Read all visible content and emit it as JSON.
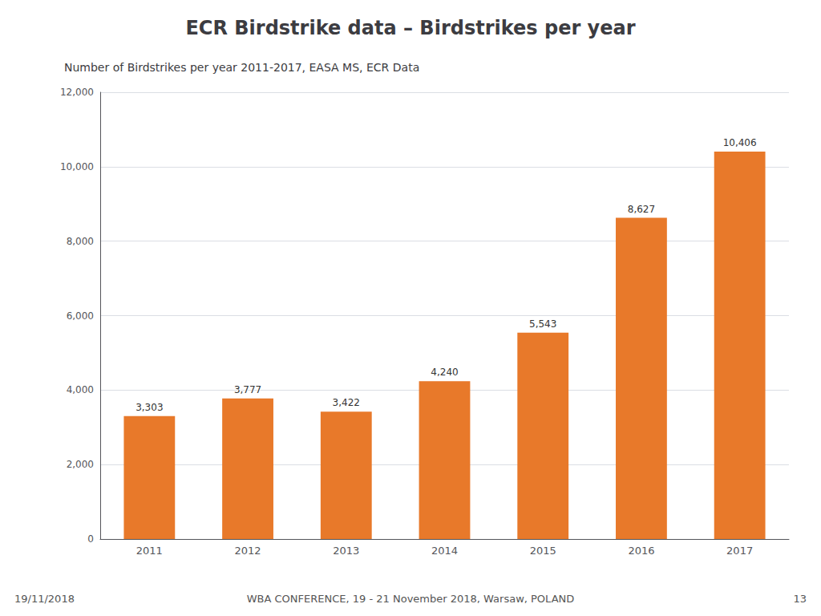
{
  "chart_data": {
    "type": "bar",
    "title": "ECR Birdstrike data – Birdstrikes per year",
    "subtitle": "Number of Birdstrikes per year 2011-2017, EASA MS, ECR Data",
    "annotations": [
      "19/11/2018",
      "WBA CONFERENCE, 19 - 21 November 2018, Warsaw, POLAND",
      "13"
    ],
    "categories": [
      "2011",
      "2012",
      "2013",
      "2014",
      "2015",
      "2016",
      "2017"
    ],
    "values": [
      3303,
      3777,
      3422,
      4240,
      5543,
      8627,
      10406
    ],
    "value_labels": [
      "3,303",
      "3,777",
      "3,422",
      "4,240",
      "5,543",
      "8,627",
      "10,406"
    ],
    "color": "#E8792A",
    "ylim": [
      0,
      12000
    ],
    "yticks": [
      0,
      {
        "value": 2000,
        "label": "2,000"
      },
      {
        "value": 4000,
        "label": "4,000"
      },
      {
        "value": 6000,
        "label": "6,000"
      },
      {
        "value": 8000,
        "label": "8,000"
      },
      {
        "value": 10000,
        "label": "10,000"
      },
      {
        "value": 12000,
        "label": "12,000"
      }
    ],
    "grid": true,
    "data_labels": true
  }
}
